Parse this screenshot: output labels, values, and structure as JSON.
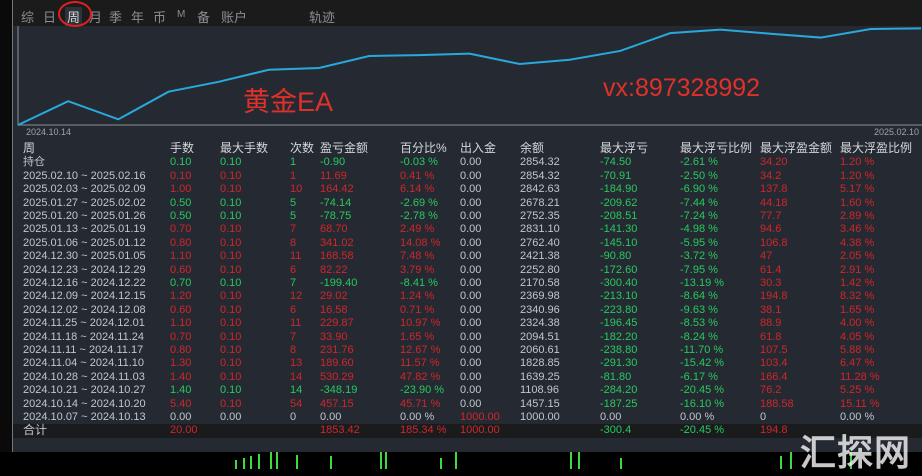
{
  "tabs": [
    {
      "label": "综"
    },
    {
      "label": "日"
    },
    {
      "label": "周",
      "active": true
    },
    {
      "label": "月"
    },
    {
      "label": "季"
    },
    {
      "label": "年"
    },
    {
      "label": "币"
    },
    {
      "label": "M"
    },
    {
      "label": "备"
    },
    {
      "label": "账户"
    },
    {
      "label": "轨迹"
    }
  ],
  "chart": {
    "start_label": "2024.10.14",
    "end_label": "2025.02.10",
    "line_color": "#29a8dc"
  },
  "overlay": {
    "title": "黄金EA",
    "contact": "vx:897328992",
    "watermark": "汇探网"
  },
  "table": {
    "headers": [
      "周",
      "手数",
      "最大手数",
      "次数",
      "盈亏金额",
      "百分比%",
      "出入金",
      "余额",
      "最大浮亏",
      "最大浮亏比例",
      "最大浮盈金额",
      "最大浮盈比例"
    ],
    "rows": [
      [
        "持仓",
        "0.10",
        "0.10",
        "1",
        "-0.90",
        "-0.03 %",
        "0.00",
        "2854.32",
        "-74.50",
        "-2.61 %",
        "34.20",
        "1.20 %"
      ],
      [
        "2025.02.10 ~ 2025.02.16",
        "0.10",
        "0.10",
        "1",
        "11.69",
        "0.41 %",
        "0.00",
        "2854.32",
        "-70.91",
        "-2.50 %",
        "34.2",
        "1.20 %"
      ],
      [
        "2025.02.03 ~ 2025.02.09",
        "1.00",
        "0.10",
        "10",
        "164.42",
        "6.14 %",
        "0.00",
        "2842.63",
        "-184.90",
        "-6.90 %",
        "137.8",
        "5.17 %"
      ],
      [
        "2025.01.27 ~ 2025.02.02",
        "0.50",
        "0.10",
        "5",
        "-74.14",
        "-2.69 %",
        "0.00",
        "2678.21",
        "-209.62",
        "-7.44 %",
        "44.18",
        "1.60 %"
      ],
      [
        "2025.01.20 ~ 2025.01.26",
        "0.50",
        "0.10",
        "5",
        "-78.75",
        "-2.78 %",
        "0.00",
        "2752.35",
        "-208.51",
        "-7.24 %",
        "77.7",
        "2.89 %"
      ],
      [
        "2025.01.13 ~ 2025.01.19",
        "0.70",
        "0.10",
        "7",
        "68.70",
        "2.49 %",
        "0.00",
        "2831.10",
        "-141.30",
        "-4.98 %",
        "94.6",
        "3.46 %"
      ],
      [
        "2025.01.06 ~ 2025.01.12",
        "0.80",
        "0.10",
        "8",
        "341.02",
        "14.08 %",
        "0.00",
        "2762.40",
        "-145.10",
        "-5.95 %",
        "106.8",
        "4.38 %"
      ],
      [
        "2024.12.30 ~ 2025.01.05",
        "1.10",
        "0.10",
        "11",
        "168.58",
        "7.48 %",
        "0.00",
        "2421.38",
        "-90.80",
        "-3.72 %",
        "47",
        "2.05 %"
      ],
      [
        "2024.12.23 ~ 2024.12.29",
        "0.60",
        "0.10",
        "6",
        "82.22",
        "3.79 %",
        "0.00",
        "2252.80",
        "-172.60",
        "-7.95 %",
        "61.4",
        "2.91 %"
      ],
      [
        "2024.12.16 ~ 2024.12.22",
        "0.70",
        "0.10",
        "7",
        "-199.40",
        "-8.41 %",
        "0.00",
        "2170.58",
        "-300.40",
        "-13.19 %",
        "30.3",
        "1.42 %"
      ],
      [
        "2024.12.09 ~ 2024.12.15",
        "1.20",
        "0.10",
        "12",
        "29.02",
        "1.24 %",
        "0.00",
        "2369.98",
        "-213.10",
        "-8.64 %",
        "194.8",
        "8.32 %"
      ],
      [
        "2024.12.02 ~ 2024.12.08",
        "0.60",
        "0.10",
        "6",
        "16.58",
        "0.71 %",
        "0.00",
        "2340.96",
        "-223.80",
        "-9.63 %",
        "38.1",
        "1.65 %"
      ],
      [
        "2024.11.25 ~ 2024.12.01",
        "1.10",
        "0.10",
        "11",
        "229.87",
        "10.97 %",
        "0.00",
        "2324.38",
        "-196.45",
        "-8.53 %",
        "88.9",
        "4.00 %"
      ],
      [
        "2024.11.18 ~ 2024.11.24",
        "0.70",
        "0.10",
        "7",
        "33.90",
        "1.65 %",
        "0.00",
        "2094.51",
        "-182.20",
        "-8.24 %",
        "61.8",
        "4.05 %"
      ],
      [
        "2024.11.11 ~ 2024.11.17",
        "0.80",
        "0.10",
        "8",
        "231.76",
        "12.67 %",
        "0.00",
        "2060.61",
        "-238.80",
        "-11.70 %",
        "107.5",
        "5.88 %"
      ],
      [
        "2024.11.04 ~ 2024.11.10",
        "1.30",
        "0.10",
        "13",
        "189.60",
        "11.57 %",
        "0.00",
        "1828.85",
        "-291.30",
        "-15.42 %",
        "103.4",
        "6.47 %"
      ],
      [
        "2024.10.28 ~ 2024.11.03",
        "1.40",
        "0.10",
        "14",
        "530.29",
        "47.82 %",
        "0.00",
        "1639.25",
        "-81.80",
        "-6.17 %",
        "166.4",
        "11.28 %"
      ],
      [
        "2024.10.21 ~ 2024.10.27",
        "1.40",
        "0.10",
        "14",
        "-348.19",
        "-23.90 %",
        "0.00",
        "1108.96",
        "-284.20",
        "-20.45 %",
        "76.2",
        "5.25 %"
      ],
      [
        "2024.10.14 ~ 2024.10.20",
        "5.40",
        "0.10",
        "54",
        "457.15",
        "45.71 %",
        "0.00",
        "1457.15",
        "-187.25",
        "-16.10 %",
        "188.58",
        "15.11 %"
      ],
      [
        "2024.10.07 ~ 2024.10.13",
        "0.00",
        "0.00",
        "0",
        "0.00",
        "0.00 %",
        "1000.00",
        "1000.00",
        "0.00",
        "0.00 %",
        "0",
        "0.00 %"
      ]
    ],
    "total": [
      "合计",
      "20.00",
      "",
      "",
      "1853.42",
      "185.34 %",
      "1000.00",
      "",
      "-300.4",
      "-20.45 %",
      "194.8",
      ""
    ]
  },
  "colors": {
    "profit": "#d0262a",
    "loss": "#27c95f",
    "neutral": "#c2c6cc",
    "panel": "#252a32"
  }
}
